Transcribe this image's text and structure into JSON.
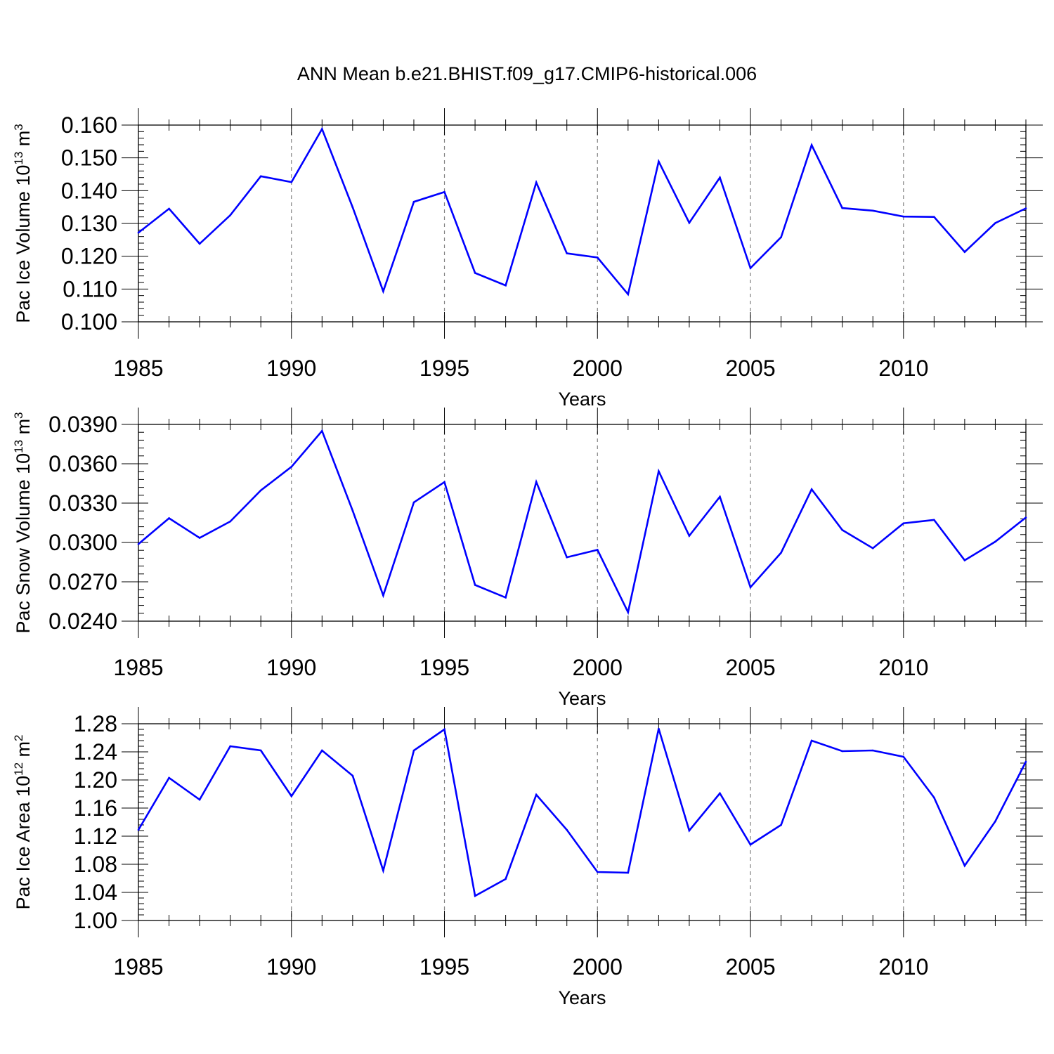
{
  "title": "ANN Mean b.e21.BHIST.f09_g17.CMIP6-historical.006",
  "colors": {
    "line": "#0000ff",
    "axes": "#000000",
    "grid": "#808080"
  },
  "chart_data": [
    {
      "type": "line",
      "xlabel": "Years",
      "ylabel": {
        "main": "Pac Ice Volume 10",
        "sup": "13",
        "mid": " m",
        "sup2": "3"
      },
      "xlim": [
        1985,
        2014
      ],
      "xticks": [
        "1985",
        "1990",
        "1995",
        "2000",
        "2005",
        "2010"
      ],
      "ylim": [
        0.1,
        0.16
      ],
      "yticks": [
        "0.100",
        "0.110",
        "0.120",
        "0.130",
        "0.140",
        "0.150",
        "0.160"
      ],
      "grid": "vertical dashed at major x ticks",
      "x": [
        1985,
        1986,
        1987,
        1988,
        1989,
        1990,
        1991,
        1992,
        1993,
        1994,
        1995,
        1996,
        1997,
        1998,
        1999,
        2000,
        2001,
        2002,
        2003,
        2004,
        2005,
        2006,
        2007,
        2008,
        2009,
        2010,
        2011,
        2012,
        2013,
        2014
      ],
      "values": [
        0.1272,
        0.1345,
        0.1238,
        0.1325,
        0.1444,
        0.1426,
        0.1588,
        0.1349,
        0.1093,
        0.1366,
        0.1396,
        0.1149,
        0.1111,
        0.1425,
        0.1209,
        0.1196,
        0.1084,
        0.1489,
        0.1302,
        0.144,
        0.1164,
        0.1258,
        0.1539,
        0.1347,
        0.1339,
        0.1321,
        0.132,
        0.1213,
        0.1301,
        0.1346
      ]
    },
    {
      "type": "line",
      "xlabel": "Years",
      "ylabel": {
        "main": "Pac Snow Volume 10",
        "sup": "13",
        "mid": " m",
        "sup2": "3"
      },
      "xlim": [
        1985,
        2014
      ],
      "xticks": [
        "1985",
        "1990",
        "1995",
        "2000",
        "2005",
        "2010"
      ],
      "ylim": [
        0.024,
        0.039
      ],
      "yticks": [
        "0.0240",
        "0.0270",
        "0.0300",
        "0.0330",
        "0.0360",
        "0.0390"
      ],
      "grid": "vertical dashed at major x ticks",
      "x": [
        1985,
        1986,
        1987,
        1988,
        1989,
        1990,
        1991,
        1992,
        1993,
        1994,
        1995,
        1996,
        1997,
        1998,
        1999,
        2000,
        2001,
        2002,
        2003,
        2004,
        2005,
        2006,
        2007,
        2008,
        2009,
        2010,
        2011,
        2012,
        2013,
        2014
      ],
      "values": [
        0.02988,
        0.03185,
        0.03035,
        0.0316,
        0.03397,
        0.03577,
        0.0385,
        0.03242,
        0.02596,
        0.03306,
        0.0346,
        0.02676,
        0.0258,
        0.03462,
        0.02887,
        0.02944,
        0.02468,
        0.03543,
        0.03051,
        0.03348,
        0.02659,
        0.02922,
        0.03405,
        0.03095,
        0.02956,
        0.03146,
        0.03172,
        0.02864,
        0.03006,
        0.0319
      ]
    },
    {
      "type": "line",
      "xlabel": "Years",
      "ylabel": {
        "main": "Pac Ice Area 10",
        "sup": "12",
        "mid": " m",
        "sup2": "2"
      },
      "xlim": [
        1985,
        2014
      ],
      "xticks": [
        "1985",
        "1990",
        "1995",
        "2000",
        "2005",
        "2010"
      ],
      "ylim": [
        1.0,
        1.28
      ],
      "yticks": [
        "1.00",
        "1.04",
        "1.08",
        "1.12",
        "1.16",
        "1.20",
        "1.24",
        "1.28"
      ],
      "grid": "vertical dashed at major x ticks",
      "x": [
        1985,
        1986,
        1987,
        1988,
        1989,
        1990,
        1991,
        1992,
        1993,
        1994,
        1995,
        1996,
        1997,
        1998,
        1999,
        2000,
        2001,
        2002,
        2003,
        2004,
        2005,
        2006,
        2007,
        2008,
        2009,
        2010,
        2011,
        2012,
        2013,
        2014
      ],
      "values": [
        1.129,
        1.203,
        1.172,
        1.248,
        1.242,
        1.177,
        1.242,
        1.206,
        1.071,
        1.242,
        1.272,
        1.035,
        1.059,
        1.179,
        1.129,
        1.069,
        1.068,
        1.273,
        1.128,
        1.181,
        1.108,
        1.136,
        1.256,
        1.241,
        1.242,
        1.233,
        1.175,
        1.078,
        1.141,
        1.226
      ]
    }
  ]
}
